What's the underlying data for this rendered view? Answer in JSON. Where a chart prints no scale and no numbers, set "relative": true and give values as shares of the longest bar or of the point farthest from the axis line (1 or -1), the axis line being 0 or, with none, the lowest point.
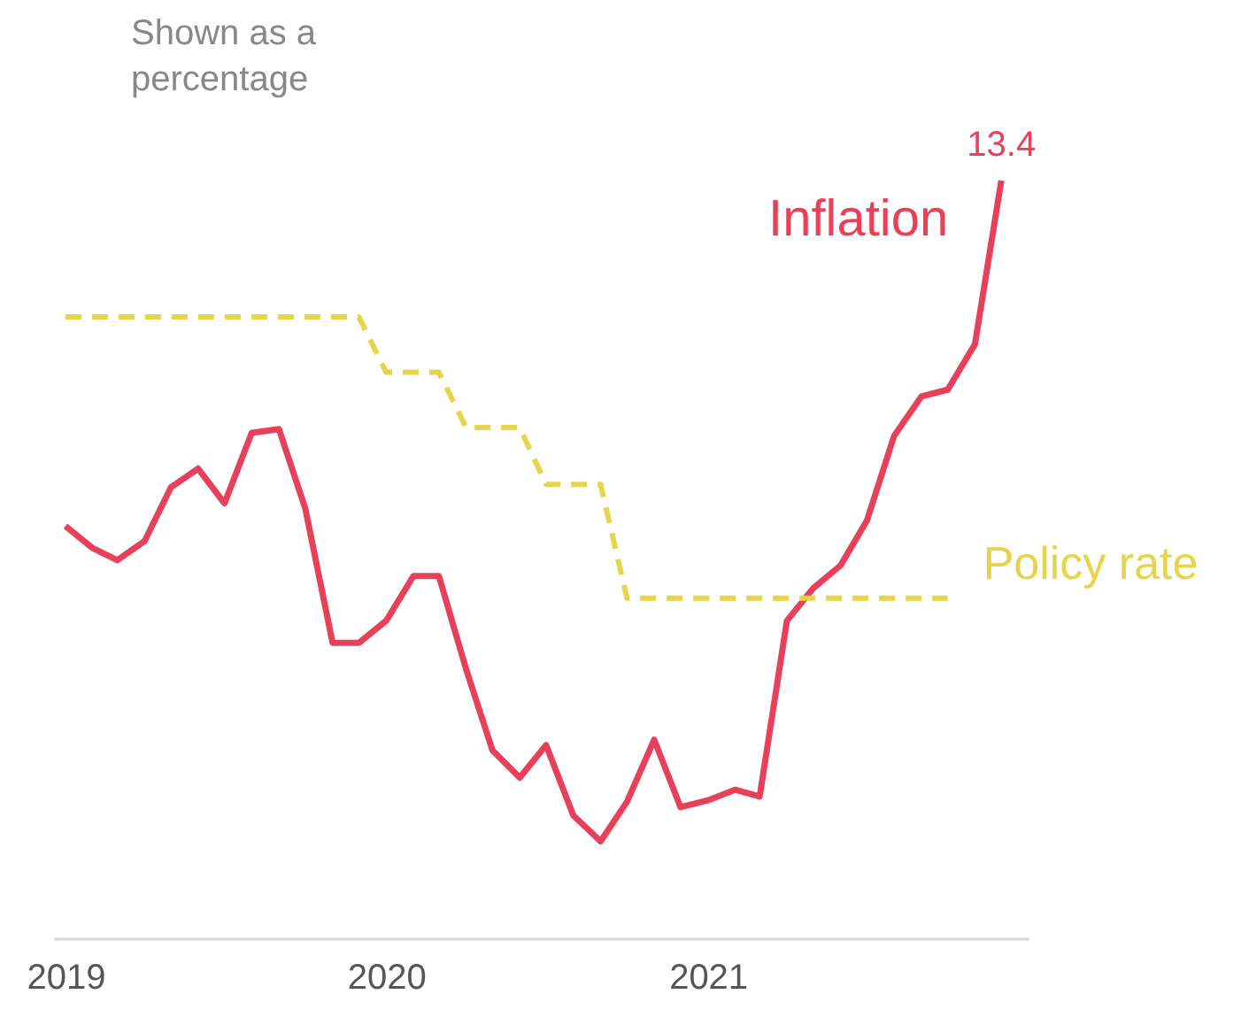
{
  "chart_data": {
    "type": "line",
    "title": "Shown as a percentage",
    "relative": true,
    "grid": false,
    "legend": false,
    "x": [
      "2019-01",
      "2019-02",
      "2019-03",
      "2019-04",
      "2019-05",
      "2019-06",
      "2019-07",
      "2019-08",
      "2019-09",
      "2019-10",
      "2019-11",
      "2019-12",
      "2020-01",
      "2020-02",
      "2020-03",
      "2020-04",
      "2020-05",
      "2020-06",
      "2020-07",
      "2020-08",
      "2020-09",
      "2020-10",
      "2020-11",
      "2020-12",
      "2021-01",
      "2021-02",
      "2021-03",
      "2021-04",
      "2021-05",
      "2021-06",
      "2021-07",
      "2021-08",
      "2021-09",
      "2021-10",
      "2021-11",
      "2021-12"
    ],
    "xlim": [
      "2018-12-18",
      "2022-01-01"
    ],
    "annotations": [
      {
        "text": "13.4",
        "x": "2021-12",
        "y": 1
      }
    ],
    "xticks": [
      {
        "value": "2019-01",
        "label": "2019"
      },
      {
        "value": "2020-01",
        "label": "2020"
      },
      {
        "value": "2021-01",
        "label": "2021"
      }
    ],
    "series": [
      {
        "name": "Inflation",
        "color": "#e8405a",
        "line_style": "solid",
        "values": [
          0.544,
          0.515,
          0.499,
          0.524,
          0.595,
          0.62,
          0.574,
          0.667,
          0.672,
          0.567,
          0.39,
          0.39,
          0.419,
          0.478,
          0.478,
          0.355,
          0.248,
          0.212,
          0.255,
          0.162,
          0.128,
          0.18,
          0.262,
          0.173,
          0.182,
          0.196,
          0.187,
          0.419,
          0.462,
          0.492,
          0.551,
          0.663,
          0.715,
          0.724,
          0.784,
          1
        ]
      },
      {
        "name": "Policy rate",
        "color": "#e6d54a",
        "line_style": "dashed",
        "values": [
          0.82,
          0.82,
          0.82,
          0.82,
          0.82,
          0.82,
          0.82,
          0.82,
          0.82,
          0.82,
          0.82,
          0.82,
          0.747,
          0.747,
          0.747,
          0.674,
          0.674,
          0.674,
          0.599,
          0.599,
          0.599,
          0.449,
          0.449,
          0.449,
          0.449,
          0.449,
          0.449,
          0.449,
          0.449,
          0.449,
          0.449,
          0.449,
          0.449,
          0.449,
          null,
          null
        ]
      }
    ]
  }
}
